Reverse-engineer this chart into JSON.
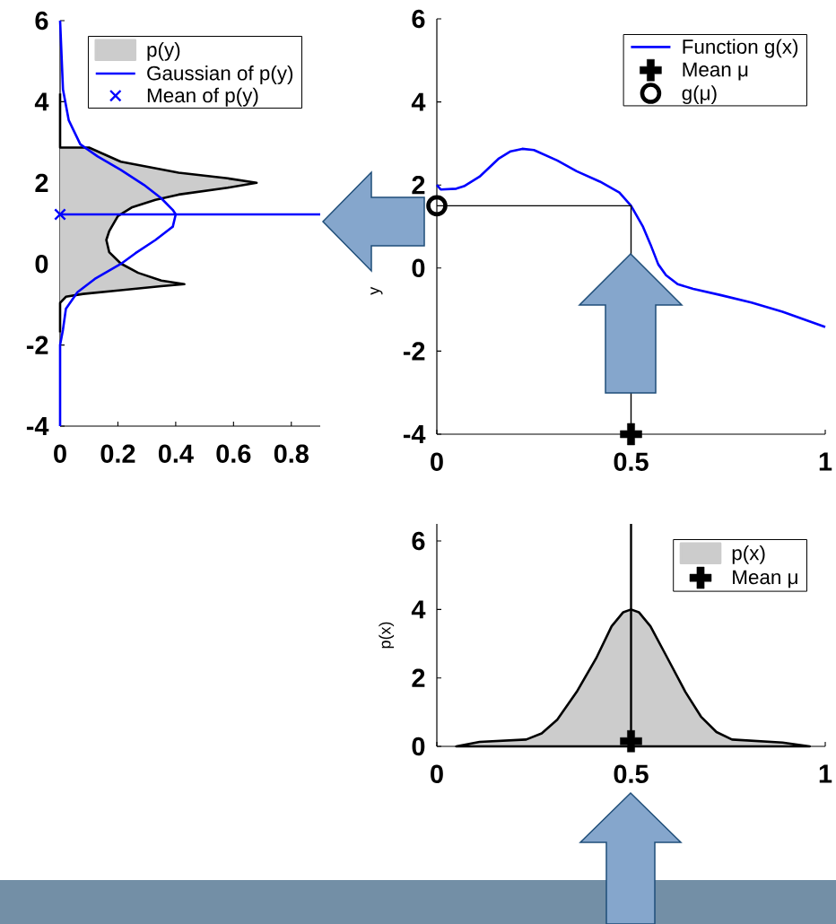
{
  "chart_data": [
    {
      "type": "area",
      "orientation": "horizontal",
      "xlim": [
        0,
        0.9
      ],
      "xticks": [
        0,
        0.2,
        0.4,
        0.6,
        0.8
      ],
      "ylim": [
        -4,
        6
      ],
      "yticks": [
        -4,
        -2,
        0,
        2,
        4,
        6
      ],
      "legend": "top right",
      "series": [
        {
          "name": "p(y)",
          "color": "#cccccc",
          "x": [
            4.2,
            2.87,
            2.87,
            2.52,
            2.25,
            2.11,
            2.0,
            1.88,
            1.71,
            1.58,
            1.4,
            1.18,
            0.81,
            0.59,
            0.29,
            0.01,
            -0.22,
            -0.41,
            -0.5,
            -0.55,
            -0.65,
            -0.74,
            -0.81,
            -0.96,
            -1.69
          ],
          "values": [
            0,
            0,
            0.1,
            0.21,
            0.41,
            0.58,
            0.68,
            0.58,
            0.41,
            0.33,
            0.25,
            0.2,
            0.17,
            0.16,
            0.17,
            0.21,
            0.27,
            0.35,
            0.43,
            0.35,
            0.21,
            0.08,
            0.02,
            0.0,
            0
          ]
        },
        {
          "name": "Gaussian of p(y)",
          "type": "line",
          "color": "#0000ff",
          "x": [
            6,
            4.3,
            3.54,
            2.95,
            2.65,
            2.32,
            1.95,
            1.62,
            1.33,
            1.22,
            0.92,
            0.59,
            0.26,
            0.0,
            -0.37,
            -0.7,
            -1.11,
            -1.62,
            -2.0,
            -4
          ],
          "values": [
            0,
            0.01,
            0.03,
            0.07,
            0.13,
            0.21,
            0.29,
            0.35,
            0.39,
            0.4,
            0.39,
            0.33,
            0.26,
            0.21,
            0.12,
            0.06,
            0.02,
            0.01,
            0,
            0
          ]
        },
        {
          "name": "Mean of p(y)",
          "type": "scatter",
          "marker": "cross",
          "color": "#0000ff",
          "x": [
            1.22
          ],
          "values": [
            0
          ]
        }
      ],
      "ref_lines": [
        {
          "axis": "y",
          "value": 1.22,
          "color": "#0000ff"
        }
      ]
    },
    {
      "type": "line",
      "xlim": [
        0,
        1
      ],
      "xticks": [
        0,
        0.5,
        1
      ],
      "ylim": [
        -4,
        6
      ],
      "yticks": [
        -4,
        -2,
        0,
        2,
        4,
        6
      ],
      "ylabel": "y",
      "legend": "top right",
      "series": [
        {
          "name": "Function g(x)",
          "color": "#0000ff",
          "x": [
            0,
            0.01,
            0.05,
            0.07,
            0.11,
            0.16,
            0.19,
            0.22,
            0.25,
            0.31,
            0.36,
            0.42,
            0.47,
            0.5,
            0.53,
            0.55,
            0.57,
            0.59,
            0.62,
            0.66,
            0.73,
            0.81,
            0.89,
            1
          ],
          "values": [
            2.0,
            1.89,
            1.91,
            1.97,
            2.2,
            2.64,
            2.81,
            2.87,
            2.84,
            2.59,
            2.33,
            2.08,
            1.82,
            1.5,
            1.01,
            0.57,
            0.09,
            -0.17,
            -0.39,
            -0.5,
            -0.65,
            -0.83,
            -1.05,
            -1.42
          ]
        },
        {
          "name": "Mean μ",
          "type": "scatter",
          "marker": "cross",
          "color": "#000000",
          "x": [
            0.5
          ],
          "values": [
            -4
          ]
        },
        {
          "name": "g(μ)",
          "type": "scatter",
          "marker": "circle",
          "color": "#000000",
          "x": [
            0
          ],
          "values": [
            1.5
          ]
        },
        {
          "color": "#000000",
          "x": [
            0,
            0.5,
            0.5
          ],
          "values": [
            1.5,
            1.5,
            -4
          ]
        }
      ]
    },
    {
      "type": "area",
      "xlim": [
        0,
        1
      ],
      "xticks": [
        0,
        0.5,
        1
      ],
      "ylim": [
        0,
        6.5
      ],
      "yticks": [
        0,
        2,
        4,
        6
      ],
      "ylabel": "p(x)",
      "legend": "top right",
      "series": [
        {
          "name": "p(x)",
          "color": "#cccccc",
          "x": [
            0.05,
            0.11,
            0.23,
            0.27,
            0.31,
            0.36,
            0.41,
            0.45,
            0.48,
            0.5,
            0.52,
            0.55,
            0.59,
            0.64,
            0.68,
            0.72,
            0.76,
            0.89,
            0.96
          ],
          "values": [
            0,
            0.13,
            0.2,
            0.38,
            0.78,
            1.59,
            2.57,
            3.51,
            3.92,
            4.0,
            3.92,
            3.51,
            2.66,
            1.59,
            0.87,
            0.42,
            0.2,
            0.11,
            0
          ]
        },
        {
          "name": "Mean μ",
          "type": "scatter",
          "marker": "cross",
          "color": "#000000",
          "x": [
            0.5
          ],
          "values": [
            0.15
          ]
        }
      ],
      "ref_lines": [
        {
          "axis": "x",
          "value": 0.5,
          "color": "#000000"
        }
      ]
    }
  ]
}
